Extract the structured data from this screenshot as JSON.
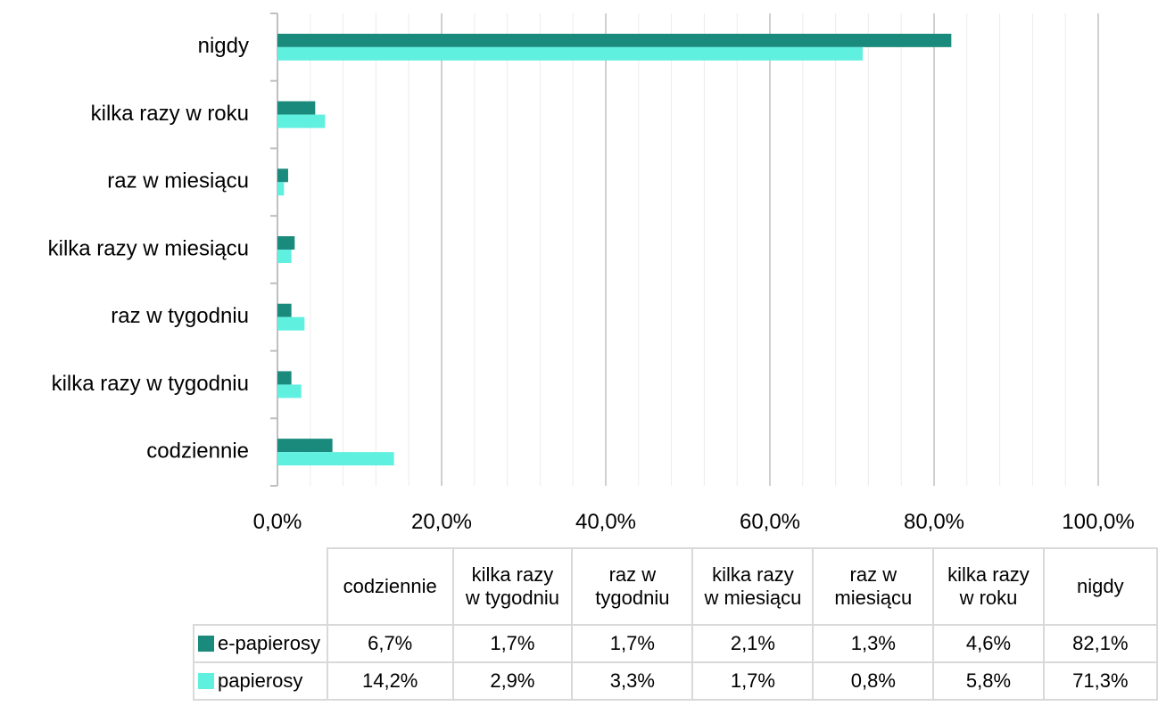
{
  "chart_data": {
    "type": "bar",
    "orientation": "horizontal",
    "categories": [
      "codziennie",
      "kilka razy\nw tygodniu",
      "raz w\ntygodniu",
      "kilka razy\nw miesiącu",
      "raz w\nmiesiącu",
      "kilka razy\nw roku",
      "nigdy"
    ],
    "axis_categories": [
      "codziennie",
      "kilka razy w tygodniu",
      "raz w tygodniu",
      "kilka razy w miesiącu",
      "raz w miesiącu",
      "kilka razy w roku",
      "nigdy"
    ],
    "series": [
      {
        "name": "e-papierosy",
        "color": "#1a8a7c",
        "values": [
          6.7,
          1.7,
          1.7,
          2.1,
          1.3,
          4.6,
          82.1
        ],
        "labels": [
          "6,7%",
          "1,7%",
          "1,7%",
          "2,1%",
          "1,3%",
          "4,6%",
          "82,1%"
        ]
      },
      {
        "name": "papierosy",
        "color": "#5ff0e0",
        "values": [
          14.2,
          2.9,
          3.3,
          1.7,
          0.8,
          5.8,
          71.3
        ],
        "labels": [
          "14,2%",
          "2,9%",
          "3,3%",
          "1,7%",
          "0,8%",
          "5,8%",
          "71,3%"
        ]
      }
    ],
    "xlim": [
      0,
      100
    ],
    "x_ticks": [
      "0,0%",
      "20,0%",
      "40,0%",
      "60,0%",
      "80,0%",
      "100,0%"
    ],
    "grid": true,
    "legend": "data table below chart",
    "title": "",
    "xlabel": "",
    "ylabel": ""
  }
}
